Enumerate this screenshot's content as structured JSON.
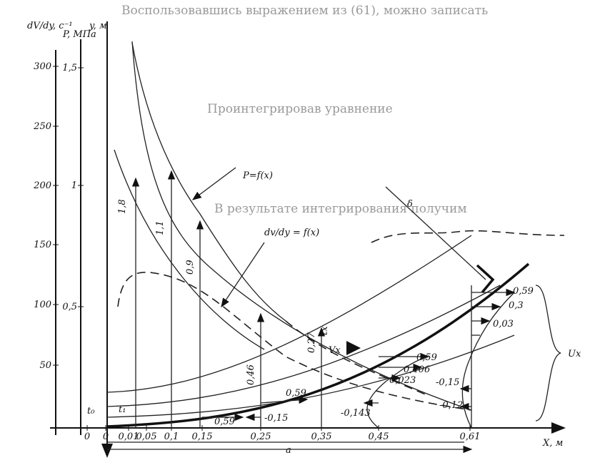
{
  "background_text": [
    "Воспользовавшись выражением из (61), можно записать",
    "Проинтегрировав уравнение",
    "В результате интегрирования получим"
  ],
  "axes": {
    "dvdy": {
      "label": "dV/dy, c⁻¹",
      "ticks": [
        "50",
        "100",
        "150",
        "200",
        "250",
        "300"
      ]
    },
    "p": {
      "label": "P, МПа",
      "ticks": [
        "0,5",
        "1",
        "1,5"
      ]
    },
    "y": {
      "label": "y, м"
    },
    "x": {
      "label": "X, м",
      "ticks": [
        "0",
        "0",
        "0,01",
        "0,05",
        "0,1",
        "0,15",
        "0,25",
        "0,35",
        "0,45",
        "0,61"
      ]
    }
  },
  "curves": {
    "pressure": "P=f(x)",
    "gradient": "dv/dy = f(x)",
    "boundary": "δ"
  },
  "stations": [
    "1,8",
    "1,1",
    "0,9",
    "0,46",
    "0,27"
  ],
  "labels": {
    "t0": "t₀",
    "t1": "t₁",
    "tx": "tx",
    "vx": "Vx",
    "ux": "Ux",
    "a": "a"
  },
  "profiles": {
    "x015": [
      "0,59"
    ],
    "x025": [
      "0,59",
      "-0,15"
    ],
    "x045": [
      "0,59",
      "0,406",
      "0,023",
      "-0,143"
    ],
    "x061": [
      "0,59",
      "0,3",
      "0,03",
      "-0,15",
      "-0,12"
    ]
  }
}
